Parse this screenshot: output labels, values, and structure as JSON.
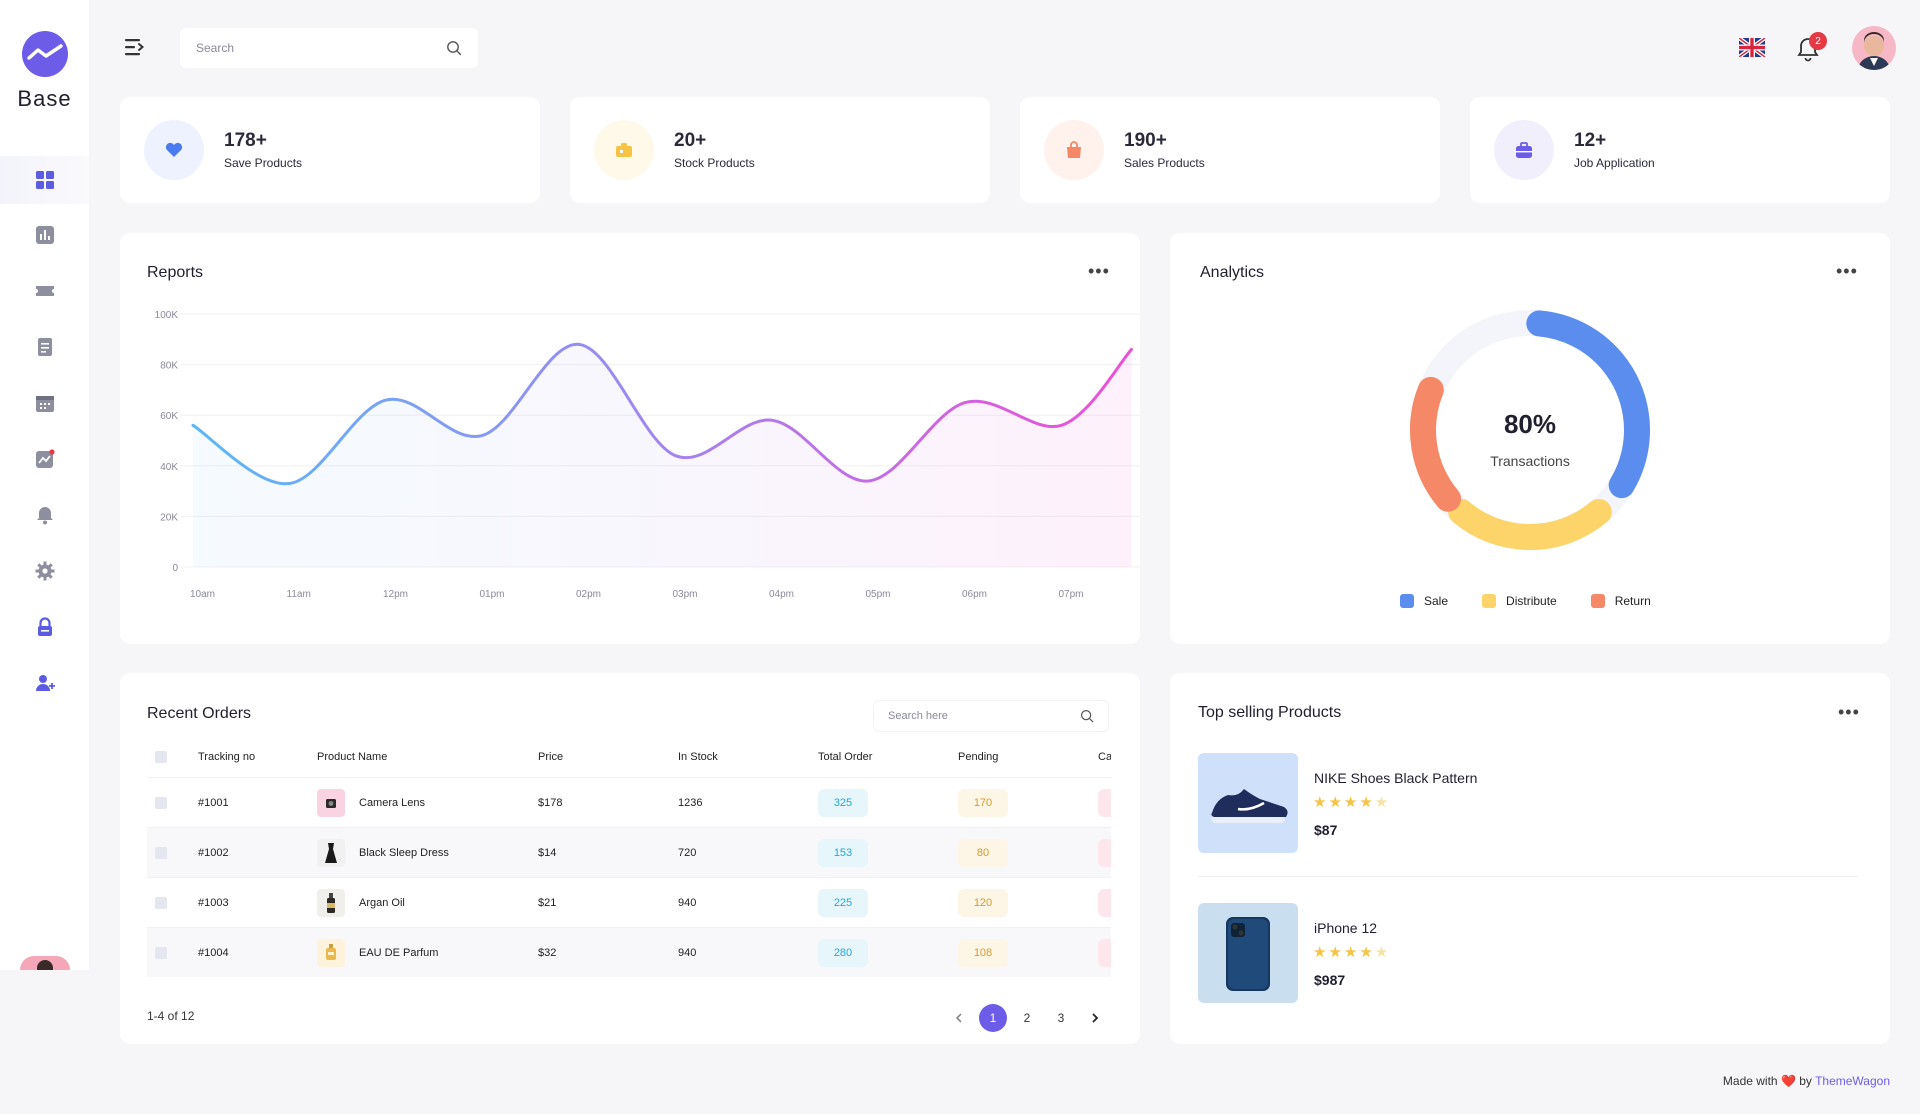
{
  "app": {
    "name": "Base"
  },
  "search": {
    "placeholder": "Search"
  },
  "notifications": {
    "count": "2"
  },
  "sidebar": {
    "items": [
      {
        "icon": "grid-icon"
      },
      {
        "icon": "bar-chart-icon"
      },
      {
        "icon": "ticket-icon"
      },
      {
        "icon": "document-icon"
      },
      {
        "icon": "calendar-icon"
      },
      {
        "icon": "trend-icon"
      },
      {
        "icon": "bell-icon"
      },
      {
        "icon": "gear-icon"
      },
      {
        "icon": "lock-icon"
      },
      {
        "icon": "add-user-icon"
      }
    ]
  },
  "stats": [
    {
      "value": "178+",
      "label": "Save Products",
      "icon": "heart-icon",
      "color": "#4a7cf0",
      "bg": "#eef2fe"
    },
    {
      "value": "20+",
      "label": "Stock Products",
      "icon": "box-icon",
      "color": "#f5c444",
      "bg": "#fff9ea"
    },
    {
      "value": "190+",
      "label": "Sales Products",
      "icon": "bag-icon",
      "color": "#f58866",
      "bg": "#fff1ec"
    },
    {
      "value": "12+",
      "label": "Job Application",
      "icon": "briefcase-icon",
      "color": "#6c5ce7",
      "bg": "#f1effc"
    }
  ],
  "reports": {
    "title": "Reports",
    "chart_data": {
      "type": "area",
      "title": "Reports",
      "x": [
        "10am",
        "11am",
        "12pm",
        "01pm",
        "02pm",
        "03pm",
        "04pm",
        "05pm",
        "06pm",
        "07pm"
      ],
      "yticks": [
        "0",
        "20K",
        "40K",
        "60K",
        "80K",
        "100K"
      ],
      "ylim": [
        0,
        100000
      ],
      "series": [
        {
          "values": [
            56000,
            33000,
            66000,
            52000,
            88000,
            44000,
            58000,
            34000,
            65000,
            56000
          ]
        }
      ],
      "grid": true
    }
  },
  "analytics": {
    "title": "Analytics",
    "center_value": "80%",
    "center_label": "Transactions",
    "chart_data": {
      "type": "pie",
      "labels": [
        "Sale",
        "Distribute",
        "Return"
      ],
      "values": [
        35,
        25,
        20
      ],
      "colors": [
        "#5b8def",
        "#fdd46a",
        "#f58866"
      ]
    }
  },
  "orders": {
    "title": "Recent Orders",
    "search_placeholder": "Search here",
    "columns": [
      "Tracking no",
      "Product Name",
      "Price",
      "In Stock",
      "Total Order",
      "Pending",
      "Ca"
    ],
    "rows": [
      {
        "id": "#1001",
        "name": "Camera Lens",
        "price": "$178",
        "stock": "1236",
        "total": "325",
        "pending": "170"
      },
      {
        "id": "#1002",
        "name": "Black Sleep Dress",
        "price": "$14",
        "stock": "720",
        "total": "153",
        "pending": "80"
      },
      {
        "id": "#1003",
        "name": "Argan Oil",
        "price": "$21",
        "stock": "940",
        "total": "225",
        "pending": "120"
      },
      {
        "id": "#1004",
        "name": "EAU DE Parfum",
        "price": "$32",
        "stock": "940",
        "total": "280",
        "pending": "108"
      }
    ],
    "pagination": {
      "info": "1-4 of 12",
      "pages": [
        "1",
        "2",
        "3"
      ],
      "current": "1"
    }
  },
  "top_products": {
    "title": "Top selling Products",
    "items": [
      {
        "name": "NIKE Shoes Black Pattern",
        "rating": 4,
        "max_rating": 5,
        "price": "$87"
      },
      {
        "name": "iPhone 12",
        "rating": 4,
        "max_rating": 5,
        "price": "$987"
      }
    ]
  },
  "footer": {
    "prefix": "Made with",
    "by": "by",
    "brand": "ThemeWagon"
  }
}
